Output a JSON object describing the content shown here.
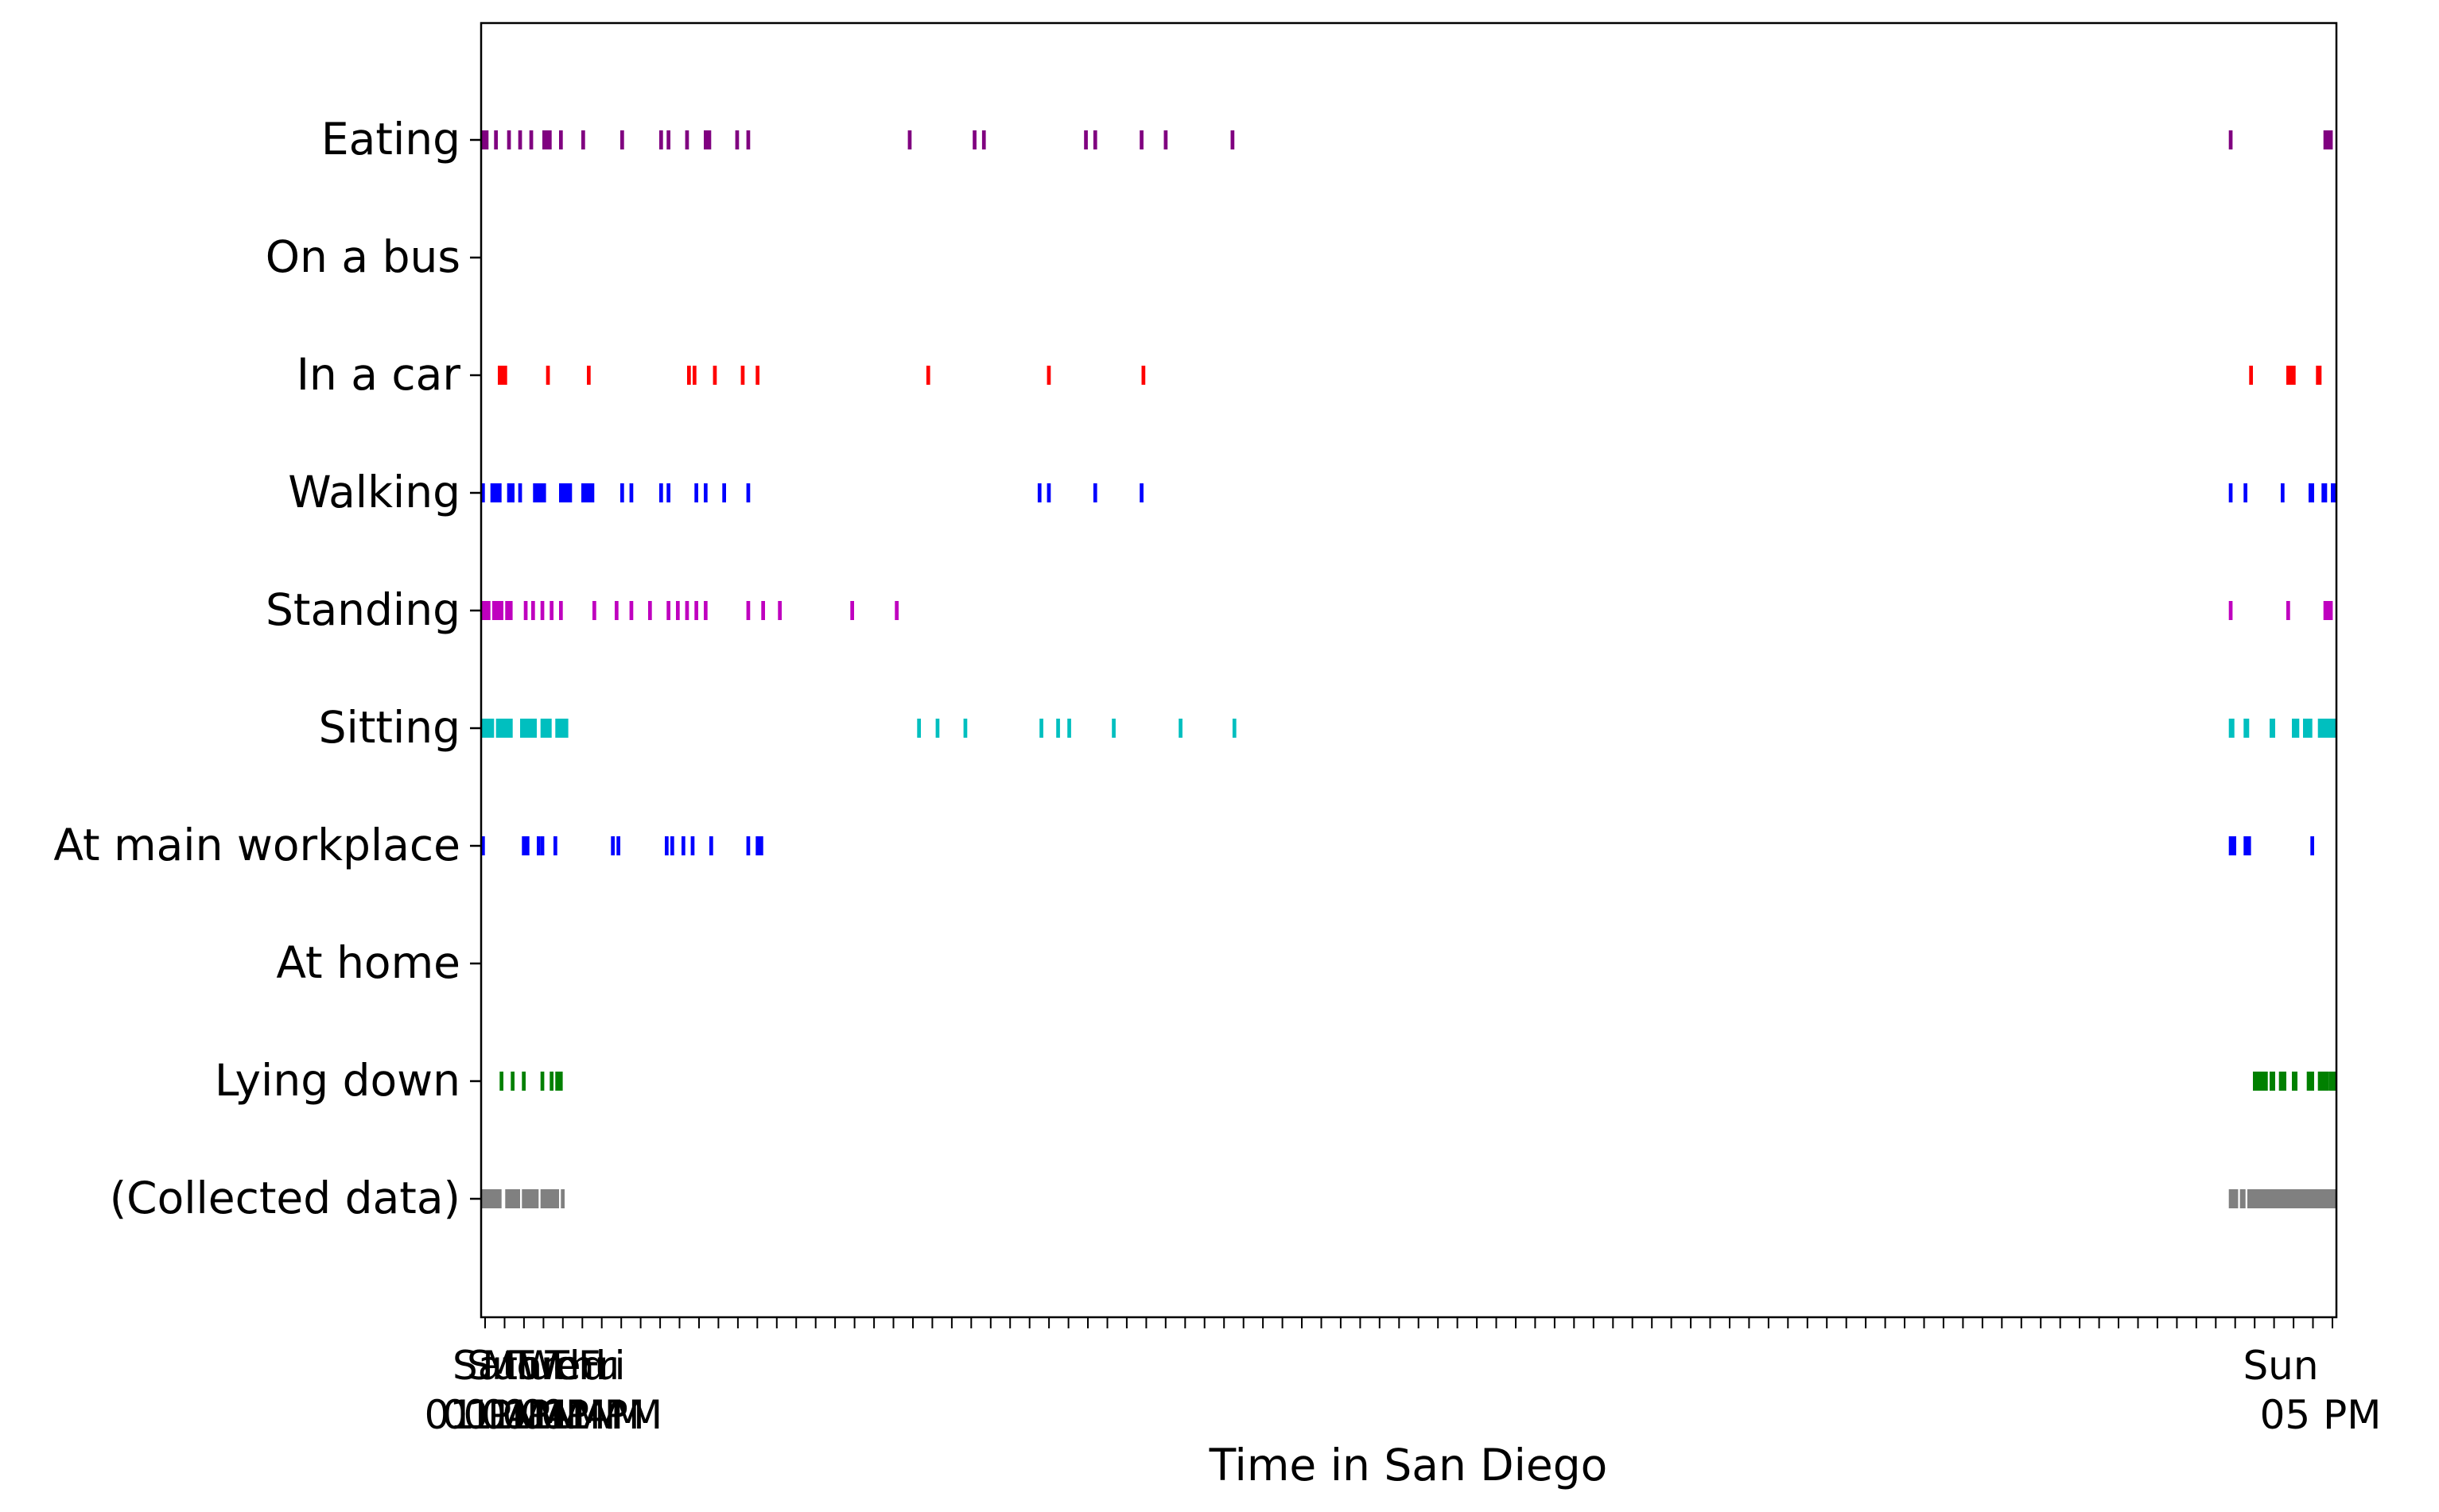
{
  "chart_data": {
    "type": "event",
    "xlabel": "Time in San Diego",
    "ylabel": "",
    "title": "",
    "xlim": [
      0,
      100
    ],
    "grid": false,
    "legend": "none",
    "xticks": {
      "count": 96,
      "first_labels": [
        "Sat",
        "Sun",
        "Mon",
        "Tue",
        "Wed",
        "Thu",
        "Fri"
      ],
      "first_sublabels": [
        "01 PM",
        "01 AM",
        "01 PM",
        "01 AM",
        "01 PM",
        "01 AM",
        "01 PM"
      ],
      "last_label": "Sun",
      "last_sublabel": "05 PM"
    },
    "categories": [
      "Eating",
      "On a bus",
      "In a car",
      "Walking",
      "Standing",
      "Sitting",
      "At main workplace",
      "At home",
      "Lying down",
      "(Collected data)"
    ],
    "series": [
      {
        "label": "Eating",
        "color": "#800080",
        "events": [
          [
            0,
            0.4
          ],
          [
            0.7,
            0.2
          ],
          [
            1.4,
            0.2
          ],
          [
            2.0,
            0.2
          ],
          [
            2.6,
            0.2
          ],
          [
            3.3,
            0.5
          ],
          [
            4.2,
            0.2
          ],
          [
            5.4,
            0.2
          ],
          [
            7.5,
            0.2
          ],
          [
            9.6,
            0.2
          ],
          [
            10.0,
            0.2
          ],
          [
            11.0,
            0.2
          ],
          [
            12.0,
            0.4
          ],
          [
            13.7,
            0.2
          ],
          [
            14.3,
            0.2
          ],
          [
            23.0,
            0.2
          ],
          [
            26.5,
            0.2
          ],
          [
            27.0,
            0.2
          ],
          [
            32.5,
            0.2
          ],
          [
            33.0,
            0.2
          ],
          [
            35.5,
            0.2
          ],
          [
            36.8,
            0.2
          ],
          [
            40.4,
            0.2
          ],
          [
            94.2,
            0.2
          ],
          [
            99.3,
            0.5
          ]
        ]
      },
      {
        "label": "On a bus",
        "color": "#000000",
        "events": []
      },
      {
        "label": "In a car",
        "color": "#ff0000",
        "events": [
          [
            0.9,
            0.3
          ],
          [
            1.2,
            0.2
          ],
          [
            3.5,
            0.2
          ],
          [
            5.7,
            0.2
          ],
          [
            11.1,
            0.2
          ],
          [
            11.4,
            0.2
          ],
          [
            12.5,
            0.2
          ],
          [
            14.0,
            0.2
          ],
          [
            14.8,
            0.2
          ],
          [
            24.0,
            0.2
          ],
          [
            30.5,
            0.2
          ],
          [
            35.6,
            0.2
          ],
          [
            95.3,
            0.2
          ],
          [
            97.3,
            0.5
          ],
          [
            98.9,
            0.3
          ]
        ]
      },
      {
        "label": "Walking",
        "color": "#0000ff",
        "events": [
          [
            0,
            0.2
          ],
          [
            0.5,
            0.6
          ],
          [
            1.4,
            0.4
          ],
          [
            2.0,
            0.2
          ],
          [
            2.8,
            0.7
          ],
          [
            4.2,
            0.7
          ],
          [
            5.4,
            0.7
          ],
          [
            7.5,
            0.2
          ],
          [
            8.0,
            0.2
          ],
          [
            9.6,
            0.2
          ],
          [
            10.0,
            0.2
          ],
          [
            11.5,
            0.2
          ],
          [
            12.0,
            0.2
          ],
          [
            13.0,
            0.2
          ],
          [
            14.3,
            0.2
          ],
          [
            30.0,
            0.2
          ],
          [
            30.5,
            0.2
          ],
          [
            33.0,
            0.2
          ],
          [
            35.5,
            0.2
          ],
          [
            94.2,
            0.2
          ],
          [
            95.0,
            0.2
          ],
          [
            97.0,
            0.2
          ],
          [
            98.5,
            0.3
          ],
          [
            99.2,
            0.3
          ],
          [
            99.7,
            0.3
          ]
        ]
      },
      {
        "label": "Standing",
        "color": "#bf00bf",
        "events": [
          [
            0,
            0.5
          ],
          [
            0.6,
            0.6
          ],
          [
            1.3,
            0.4
          ],
          [
            2.3,
            0.2
          ],
          [
            2.7,
            0.2
          ],
          [
            3.2,
            0.2
          ],
          [
            3.7,
            0.2
          ],
          [
            4.2,
            0.2
          ],
          [
            6.0,
            0.2
          ],
          [
            7.2,
            0.2
          ],
          [
            8.0,
            0.2
          ],
          [
            9.0,
            0.2
          ],
          [
            10.0,
            0.2
          ],
          [
            10.5,
            0.2
          ],
          [
            11.0,
            0.2
          ],
          [
            11.5,
            0.2
          ],
          [
            12.0,
            0.2
          ],
          [
            14.3,
            0.2
          ],
          [
            15.1,
            0.2
          ],
          [
            16.0,
            0.2
          ],
          [
            19.9,
            0.2
          ],
          [
            22.3,
            0.2
          ],
          [
            94.2,
            0.2
          ],
          [
            97.3,
            0.2
          ],
          [
            99.3,
            0.5
          ]
        ]
      },
      {
        "label": "Sitting",
        "color": "#00bfbf",
        "events": [
          [
            0,
            0.7
          ],
          [
            0.8,
            0.9
          ],
          [
            2.1,
            0.9
          ],
          [
            3.2,
            0.6
          ],
          [
            4.0,
            0.7
          ],
          [
            23.5,
            0.2
          ],
          [
            24.5,
            0.2
          ],
          [
            26.0,
            0.2
          ],
          [
            30.1,
            0.2
          ],
          [
            31.0,
            0.2
          ],
          [
            31.6,
            0.2
          ],
          [
            34.0,
            0.2
          ],
          [
            37.6,
            0.2
          ],
          [
            40.5,
            0.2
          ],
          [
            94.2,
            0.3
          ],
          [
            95.0,
            0.3
          ],
          [
            96.4,
            0.3
          ],
          [
            97.6,
            0.4
          ],
          [
            98.2,
            0.5
          ],
          [
            99.0,
            0.7
          ],
          [
            99.6,
            0.4
          ]
        ]
      },
      {
        "label": "At main workplace",
        "color": "#0000ff",
        "events": [
          [
            0,
            0.2
          ],
          [
            2.2,
            0.2
          ],
          [
            2.4,
            0.2
          ],
          [
            3.0,
            0.2
          ],
          [
            3.2,
            0.2
          ],
          [
            3.9,
            0.2
          ],
          [
            7.0,
            0.2
          ],
          [
            7.3,
            0.2
          ],
          [
            9.9,
            0.2
          ],
          [
            10.2,
            0.2
          ],
          [
            10.8,
            0.2
          ],
          [
            11.3,
            0.2
          ],
          [
            12.3,
            0.2
          ],
          [
            14.3,
            0.2
          ],
          [
            14.8,
            0.2
          ],
          [
            15.0,
            0.2
          ],
          [
            94.2,
            0.4
          ],
          [
            95.0,
            0.4
          ],
          [
            98.6,
            0.2
          ]
        ]
      },
      {
        "label": "At home",
        "color": "#000000",
        "events": []
      },
      {
        "label": "Lying down",
        "color": "#008000",
        "events": [
          [
            1.0,
            0.2
          ],
          [
            1.6,
            0.2
          ],
          [
            2.2,
            0.2
          ],
          [
            3.2,
            0.2
          ],
          [
            3.7,
            0.2
          ],
          [
            4.0,
            0.4
          ],
          [
            95.5,
            0.8
          ],
          [
            96.4,
            0.3
          ],
          [
            96.9,
            0.4
          ],
          [
            97.6,
            0.3
          ],
          [
            98.4,
            0.4
          ],
          [
            99.0,
            0.6
          ],
          [
            99.6,
            0.4
          ]
        ]
      },
      {
        "label": "(Collected data)",
        "color": "#808080",
        "events": [
          [
            0,
            1.1
          ],
          [
            1.3,
            0.8
          ],
          [
            2.2,
            0.9
          ],
          [
            3.2,
            1.0
          ],
          [
            4.3,
            0.2
          ],
          [
            94.2,
            0.5
          ],
          [
            94.8,
            0.3
          ],
          [
            95.2,
            0.5
          ],
          [
            95.6,
            4.4
          ]
        ]
      }
    ]
  }
}
